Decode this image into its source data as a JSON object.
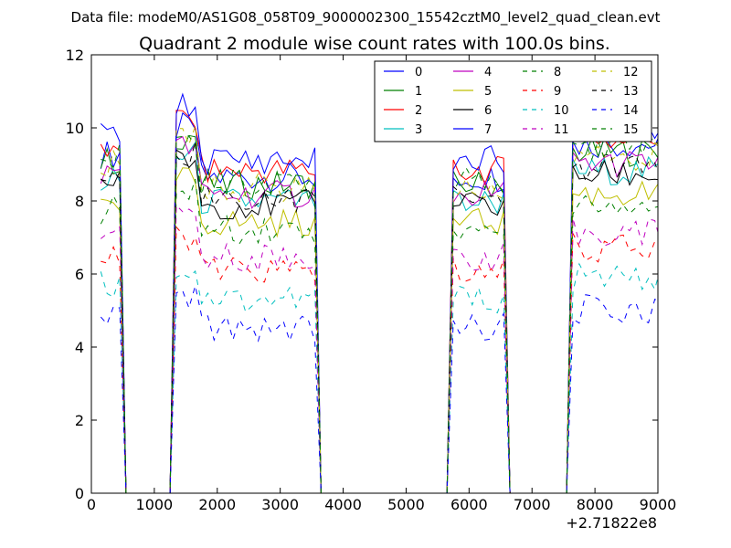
{
  "chart_data": {
    "type": "line",
    "suptitle": "Data file: modeM0/AS1G08_058T09_9000002300_15542cztM0_level2_quad_clean.evt",
    "title": "Quadrant 2 module wise count rates with 100.0s bins.",
    "xlabel": "",
    "ylabel": "",
    "x_offset_label": "+2.71822e8",
    "xlim": [
      0,
      9000
    ],
    "ylim": [
      0,
      12
    ],
    "xticks": [
      0,
      1000,
      2000,
      3000,
      4000,
      5000,
      6000,
      7000,
      8000,
      9000
    ],
    "yticks": [
      0,
      2,
      4,
      6,
      8,
      10,
      12
    ],
    "legend_position": "top-right",
    "x": [
      150,
      250,
      350,
      450,
      550,
      650,
      750,
      850,
      950,
      1050,
      1150,
      1250,
      1350,
      1450,
      1550,
      1650,
      1750,
      1850,
      1950,
      2050,
      2150,
      2250,
      2350,
      2450,
      2550,
      2650,
      2750,
      2850,
      2950,
      3050,
      3150,
      3250,
      3350,
      3450,
      3550,
      3650,
      3750,
      3850,
      3950,
      4050,
      4150,
      4250,
      4350,
      4450,
      4550,
      4650,
      4750,
      4850,
      4950,
      5050,
      5150,
      5250,
      5350,
      5450,
      5550,
      5650,
      5750,
      5850,
      5950,
      6050,
      6150,
      6250,
      6350,
      6450,
      6550,
      6650,
      6750,
      6850,
      6950,
      7050,
      7150,
      7250,
      7350,
      7450,
      7550,
      7650,
      7750,
      7850,
      7950,
      8050,
      8150,
      8250,
      8350,
      8450,
      8550,
      8650,
      8750,
      8850,
      8950,
      9050
    ],
    "series": [
      {
        "name": "0",
        "color": "#0000ff",
        "dash": "solid",
        "level": 9.1
      },
      {
        "name": "1",
        "color": "#008000",
        "dash": "solid",
        "level": 8.9
      },
      {
        "name": "2",
        "color": "#ff0000",
        "dash": "solid",
        "level": 9.3
      },
      {
        "name": "3",
        "color": "#00bfbf",
        "dash": "solid",
        "level": 8.4
      },
      {
        "name": "4",
        "color": "#bf00bf",
        "dash": "solid",
        "level": 8.6
      },
      {
        "name": "5",
        "color": "#bfbf00",
        "dash": "solid",
        "level": 7.8
      },
      {
        "name": "6",
        "color": "#000000",
        "dash": "solid",
        "level": 8.3
      },
      {
        "name": "7",
        "color": "#0000ff",
        "dash": "solid",
        "level": 9.6
      },
      {
        "name": "8",
        "color": "#008000",
        "dash": "dashed",
        "level": 7.6
      },
      {
        "name": "9",
        "color": "#ff0000",
        "dash": "dashed",
        "level": 6.4
      },
      {
        "name": "10",
        "color": "#00bfbf",
        "dash": "dashed",
        "level": 5.6
      },
      {
        "name": "11",
        "color": "#bf00bf",
        "dash": "dashed",
        "level": 6.8
      },
      {
        "name": "12",
        "color": "#bfbf00",
        "dash": "dashed",
        "level": 8.8
      },
      {
        "name": "13",
        "color": "#000000",
        "dash": "dashed",
        "level": 8.5
      },
      {
        "name": "14",
        "color": "#0000ff",
        "dash": "dashed",
        "level": 4.8
      },
      {
        "name": "15",
        "color": "#008000",
        "dash": "dashed",
        "level": 9.0
      }
    ],
    "active_intervals": [
      [
        150,
        450
      ],
      [
        1350,
        3550
      ],
      [
        5750,
        6550
      ],
      [
        7650,
        9050
      ]
    ]
  }
}
